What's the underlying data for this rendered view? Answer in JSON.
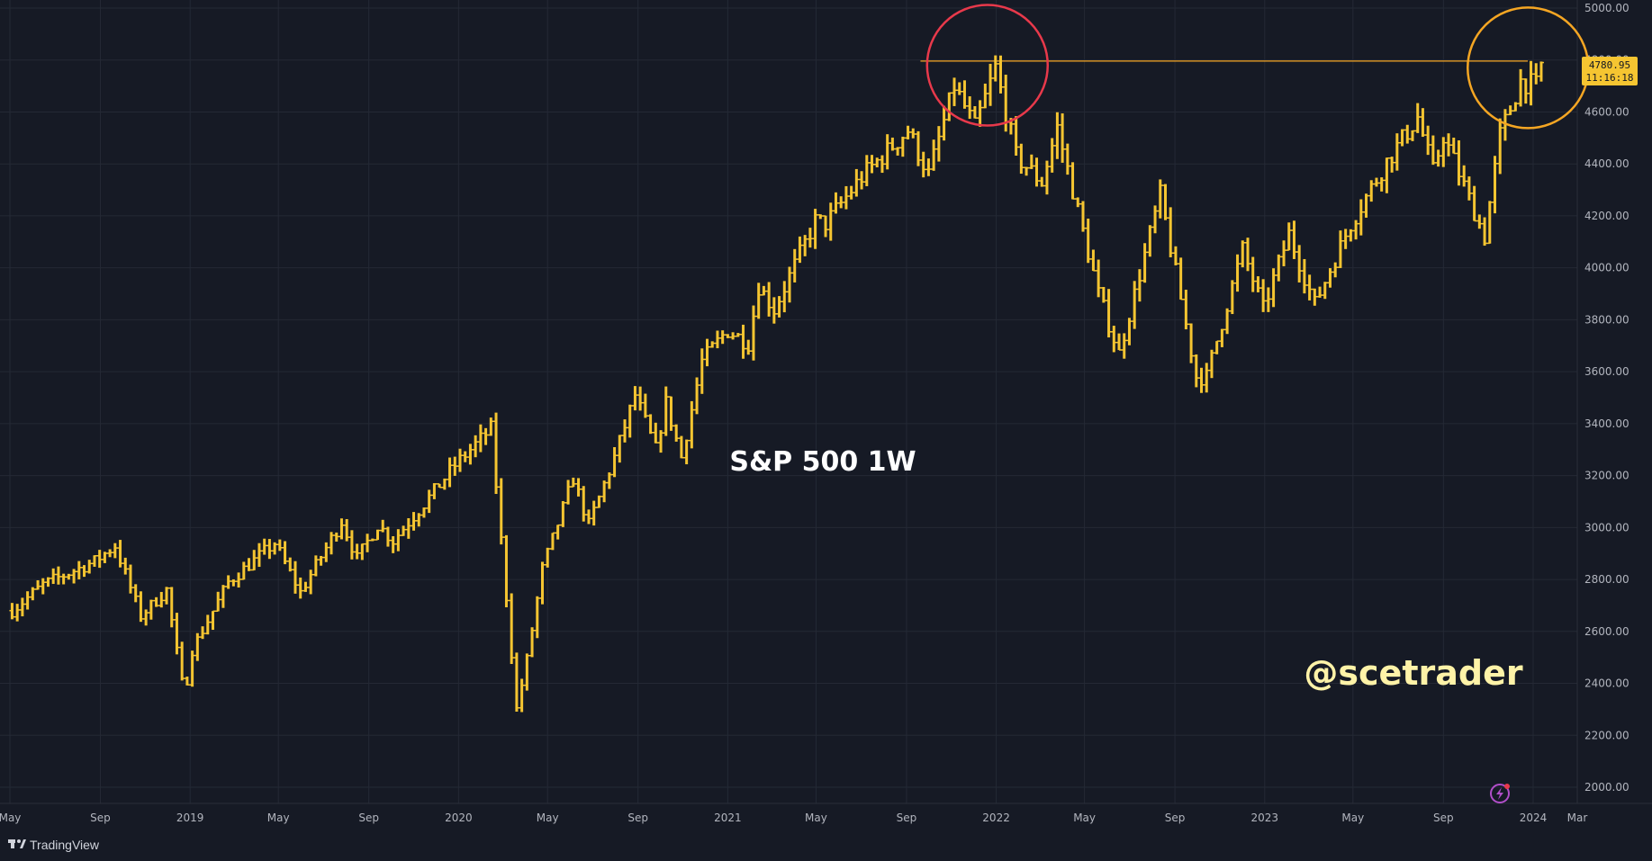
{
  "colors": {
    "background": "#161a25",
    "grid": "#242935",
    "bars": "#f5c531",
    "axis_text": "#b2b5be",
    "resistance_line": "#f5a623",
    "circle_left": "#e8394b",
    "circle_right": "#f5a623",
    "handle": "#fff3a8"
  },
  "brand": {
    "name": "TradingView",
    "logo_icon": "tradingview-logo-icon"
  },
  "annotations": {
    "title": "S&P 500 1W",
    "handle": "@scetrader",
    "lightning_icon": "lightning-icon"
  },
  "price_label": {
    "price": "4780.95",
    "countdown": "11:16:18"
  },
  "chart_data": {
    "type": "ohlc-bar",
    "title": "S&P 500 1W",
    "timeframe": "1W",
    "y_range": [
      1920,
      5000
    ],
    "y_ticks": [
      "5000.00",
      "4800.00",
      "4600.00",
      "4400.00",
      "4200.00",
      "4000.00",
      "3800.00",
      "3600.00",
      "3400.00",
      "3200.00",
      "3000.00",
      "2800.00",
      "2600.00",
      "2400.00",
      "2200.00",
      "2000.00"
    ],
    "y_tick_values": [
      5000,
      4800,
      4600,
      4400,
      4200,
      4000,
      3800,
      3600,
      3400,
      3200,
      3000,
      2800,
      2600,
      2400,
      2200,
      2000
    ],
    "x_ticks": [
      "May",
      "Sep",
      "2019",
      "May",
      "Sep",
      "2020",
      "May",
      "Sep",
      "2021",
      "May",
      "Sep",
      "2022",
      "May",
      "Sep",
      "2023",
      "May",
      "Sep",
      "2024",
      "Mar"
    ],
    "x_tick_dates": [
      "2018-05-01",
      "2018-09-01",
      "2019-01-01",
      "2019-05-01",
      "2019-09-01",
      "2020-01-01",
      "2020-05-01",
      "2020-09-01",
      "2021-01-01",
      "2021-05-01",
      "2021-09-01",
      "2022-01-01",
      "2022-05-01",
      "2022-09-01",
      "2023-01-01",
      "2023-05-01",
      "2023-09-01",
      "2024-01-01",
      "2024-03-01"
    ],
    "x_range": [
      "2018-05-01",
      "2024-03-01"
    ],
    "resistance_level": 4796,
    "circles": [
      {
        "center_date": "2021-12-20",
        "center_price": 4780,
        "color": "red"
      },
      {
        "center_date": "2023-12-25",
        "center_price": 4770,
        "color": "orange"
      }
    ],
    "series": [
      {
        "name": "S&P 500",
        "weekly_close_keypoints": [
          [
            "2018-05-04",
            2680
          ],
          [
            "2018-06-15",
            2780
          ],
          [
            "2018-08-24",
            2870
          ],
          [
            "2018-09-21",
            2930
          ],
          [
            "2018-10-26",
            2660
          ],
          [
            "2018-11-30",
            2760
          ],
          [
            "2018-12-24",
            2350
          ],
          [
            "2019-01-04",
            2530
          ],
          [
            "2019-02-22",
            2790
          ],
          [
            "2019-04-26",
            2940
          ],
          [
            "2019-05-31",
            2750
          ],
          [
            "2019-07-26",
            3025
          ],
          [
            "2019-08-16",
            2880
          ],
          [
            "2019-09-13",
            3010
          ],
          [
            "2019-10-04",
            2950
          ],
          [
            "2019-11-29",
            3140
          ],
          [
            "2019-12-27",
            3240
          ],
          [
            "2020-02-14",
            3380
          ],
          [
            "2020-02-28",
            2950
          ],
          [
            "2020-03-20",
            2300
          ],
          [
            "2020-04-03",
            2490
          ],
          [
            "2020-04-24",
            2840
          ],
          [
            "2020-06-05",
            3190
          ],
          [
            "2020-06-26",
            3010
          ],
          [
            "2020-07-31",
            3270
          ],
          [
            "2020-08-28",
            3510
          ],
          [
            "2020-09-25",
            3300
          ],
          [
            "2020-10-09",
            3480
          ],
          [
            "2020-10-30",
            3270
          ],
          [
            "2020-11-27",
            3640
          ],
          [
            "2020-12-31",
            3760
          ],
          [
            "2021-01-29",
            3710
          ],
          [
            "2021-02-12",
            3930
          ],
          [
            "2021-03-05",
            3840
          ],
          [
            "2021-04-30",
            4180
          ],
          [
            "2021-05-14",
            4170
          ],
          [
            "2021-07-02",
            4350
          ],
          [
            "2021-09-03",
            4530
          ],
          [
            "2021-10-01",
            4360
          ],
          [
            "2021-11-05",
            4700
          ],
          [
            "2021-12-03",
            4540
          ],
          [
            "2021-12-31",
            4770
          ],
          [
            "2022-01-28",
            4430
          ],
          [
            "2022-03-04",
            4330
          ],
          [
            "2022-03-25",
            4540
          ],
          [
            "2022-05-20",
            3900
          ],
          [
            "2022-06-17",
            3670
          ],
          [
            "2022-08-12",
            4280
          ],
          [
            "2022-09-30",
            3580
          ],
          [
            "2022-10-14",
            3580
          ],
          [
            "2022-12-02",
            4070
          ],
          [
            "2022-12-30",
            3840
          ],
          [
            "2023-02-03",
            4130
          ],
          [
            "2023-03-10",
            3860
          ],
          [
            "2023-04-28",
            4170
          ],
          [
            "2023-06-16",
            4410
          ],
          [
            "2023-07-28",
            4580
          ],
          [
            "2023-08-18",
            4370
          ],
          [
            "2023-09-01",
            4510
          ],
          [
            "2023-10-27",
            4120
          ],
          [
            "2023-11-17",
            4510
          ],
          [
            "2023-12-15",
            4720
          ],
          [
            "2024-01-05",
            4700
          ],
          [
            "2024-01-12",
            4780
          ]
        ]
      }
    ]
  }
}
